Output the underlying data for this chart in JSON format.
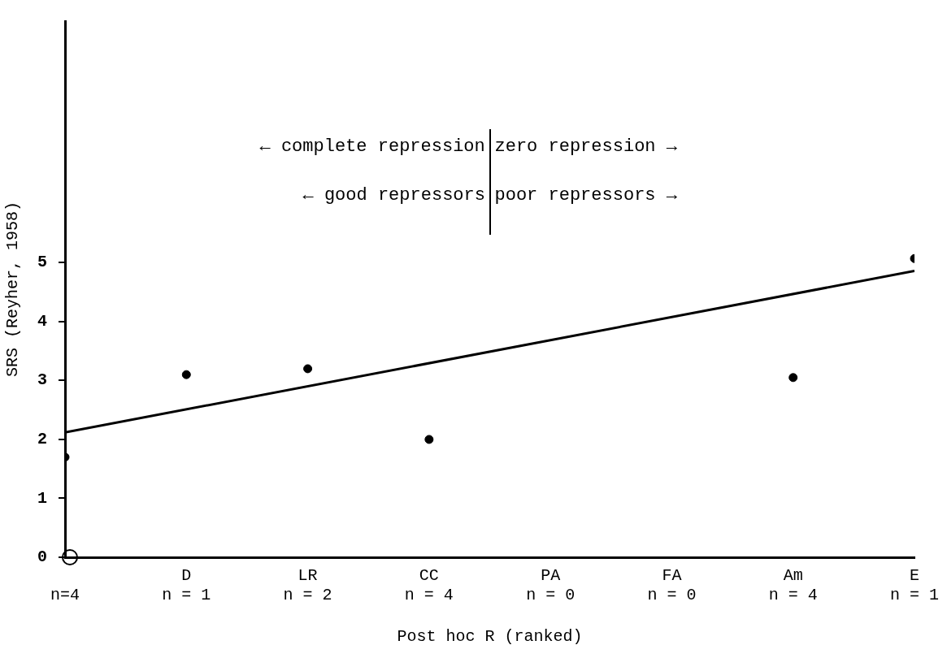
{
  "chart_data": {
    "type": "scatter",
    "xlabel": "Post hoc R (ranked)",
    "ylabel": "SRS (Reyher, 1958)",
    "categories": [
      "n=4",
      "D\nn = 1",
      "LR\nn = 2",
      "CC\nn = 4",
      "PA\nn = 0",
      "FA\nn = 0",
      "Am\nn = 4",
      "E\nn = 1"
    ],
    "ylim": [
      0,
      9.1
    ],
    "yticks": [
      0,
      1,
      2,
      3,
      4,
      5
    ],
    "grid": false,
    "legend": false,
    "marker": "circle",
    "series": [
      {
        "color": "#000000",
        "x": [
          "n=4",
          "D\nn = 1",
          "LR\nn = 2",
          "CC\nn = 4",
          "Am\nn = 4",
          "E\nn = 1"
        ],
        "values": [
          1.7,
          3.1,
          3.2,
          2.0,
          3.05,
          5.07
        ]
      },
      {
        "type": "line",
        "color": "#000000",
        "marker": "none",
        "x": [
          "n=4",
          "E\nn = 1"
        ],
        "values": [
          2.12,
          4.86
        ]
      }
    ],
    "annotations": [
      "← complete repression",
      "zero repression →",
      "← good repressors",
      "poor repressors →"
    ]
  }
}
